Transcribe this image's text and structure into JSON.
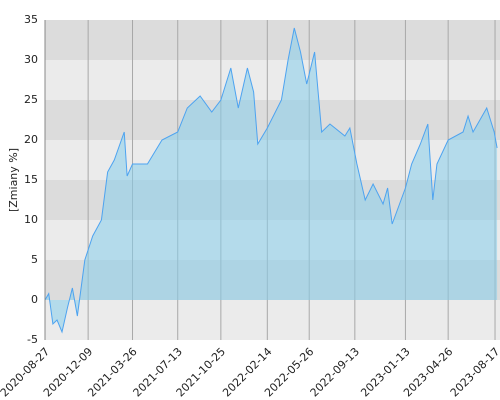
{
  "chart_data": {
    "type": "area",
    "y_label": "[Zmiany %]",
    "x": [
      "2020-08-27",
      "2020-09-05",
      "2020-09-15",
      "2020-09-25",
      "2020-10-07",
      "2020-10-20",
      "2020-11-01",
      "2020-11-13",
      "2020-12-01",
      "2020-12-20",
      "2021-01-10",
      "2021-01-25",
      "2021-02-10",
      "2021-03-06",
      "2021-03-13",
      "2021-03-26",
      "2021-05-01",
      "2021-06-05",
      "2021-07-13",
      "2021-08-05",
      "2021-09-05",
      "2021-10-03",
      "2021-10-25",
      "2021-11-18",
      "2021-12-06",
      "2021-12-28",
      "2022-01-12",
      "2022-01-22",
      "2022-02-14",
      "2022-03-20",
      "2022-04-05",
      "2022-04-20",
      "2022-05-05",
      "2022-05-20",
      "2022-06-08",
      "2022-06-25",
      "2022-07-15",
      "2022-08-20",
      "2022-09-01",
      "2022-09-18",
      "2022-10-08",
      "2022-10-27",
      "2022-11-20",
      "2022-12-01",
      "2022-12-12",
      "2023-01-13",
      "2023-01-28",
      "2023-02-18",
      "2023-03-08",
      "2023-03-20",
      "2023-03-30",
      "2023-04-26",
      "2023-06-01",
      "2023-06-13",
      "2023-06-25",
      "2023-07-28",
      "2023-08-15",
      "2023-08-22"
    ],
    "values": [
      0,
      0.8,
      -3,
      -2.5,
      -4,
      -1,
      1.5,
      -2,
      5,
      8,
      10,
      16,
      17.5,
      21,
      15.5,
      17,
      17,
      20,
      21,
      24,
      25.5,
      23.5,
      25,
      29,
      24,
      29,
      26,
      19.5,
      21.5,
      25,
      30,
      34,
      31,
      27,
      31,
      21,
      22,
      20.5,
      21.5,
      17,
      12.5,
      14.5,
      12,
      14,
      9.5,
      14,
      17,
      19.5,
      22,
      12.5,
      17,
      20,
      21,
      23,
      21,
      24,
      21,
      19
    ],
    "color": "#4da3f0",
    "xlim": [
      "2020-08-27",
      "2023-08-29"
    ],
    "xticks": [
      "2020-08-27",
      "2020-12-09",
      "2021-03-26",
      "2021-07-13",
      "2021-10-25",
      "2022-02-14",
      "2022-05-26",
      "2022-09-13",
      "2023-01-13",
      "2023-04-26",
      "2023-08-17"
    ],
    "ylim": [
      -5,
      35
    ],
    "yticks": [
      -5,
      0,
      5,
      10,
      15,
      20,
      25,
      30,
      35
    ],
    "grid": true
  }
}
